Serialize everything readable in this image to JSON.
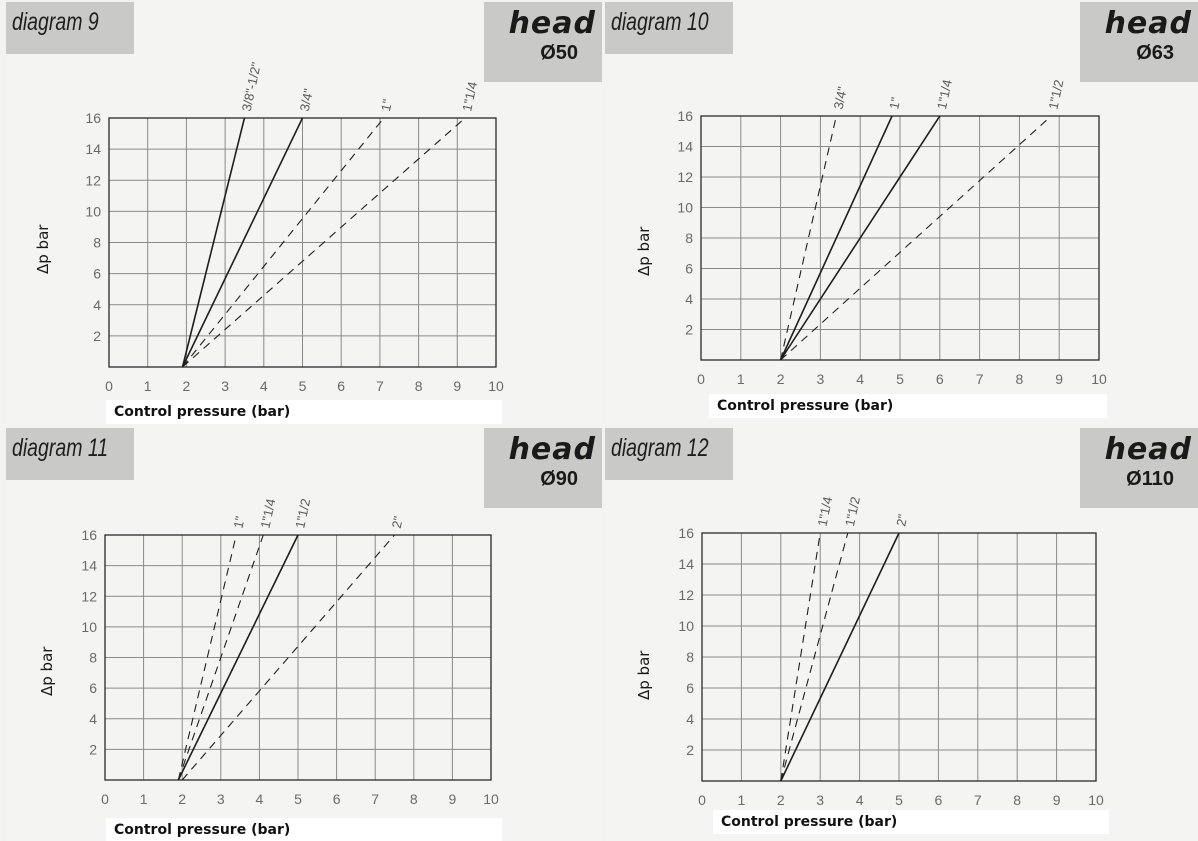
{
  "colors": {
    "panel_bg": "#f4f4f3",
    "tab_bg": "#c9c9c7",
    "grid": "#8a8a8a",
    "frame": "#2a2a2a",
    "line": "#1e1e1e"
  },
  "chart_data": [
    {
      "type": "line",
      "title": "diagram 9",
      "badge": {
        "word": "head",
        "diameter": "Ø50"
      },
      "xlabel": "Control pressure (bar)",
      "ylabel": "Δp bar",
      "xlim": [
        0,
        10
      ],
      "ylim": [
        0,
        16
      ],
      "xticks": [
        "0",
        "1",
        "2",
        "3",
        "4",
        "5",
        "6",
        "7",
        "8",
        "9",
        "10"
      ],
      "yticks": [
        "2",
        "4",
        "6",
        "8",
        "10",
        "12",
        "14",
        "16"
      ],
      "grid": true,
      "series": [
        {
          "name": "3/8\"-1/2\"",
          "style": "solid",
          "x": [
            1.9,
            3.5
          ],
          "y": [
            0,
            16
          ]
        },
        {
          "name": "3/4\"",
          "style": "solid",
          "x": [
            1.9,
            5.0
          ],
          "y": [
            0,
            16
          ]
        },
        {
          "name": "1\"",
          "style": "dashed",
          "x": [
            1.9,
            7.1
          ],
          "y": [
            0,
            16
          ]
        },
        {
          "name": "1\"1/4",
          "style": "dashed",
          "x": [
            1.9,
            9.2
          ],
          "y": [
            0,
            16
          ]
        }
      ]
    },
    {
      "type": "line",
      "title": "diagram 10",
      "badge": {
        "word": "head",
        "diameter": "Ø63"
      },
      "xlabel": "Control pressure (bar)",
      "ylabel": "Δp bar",
      "xlim": [
        0,
        10
      ],
      "ylim": [
        0,
        16
      ],
      "xticks": [
        "0",
        "1",
        "2",
        "3",
        "4",
        "5",
        "6",
        "7",
        "8",
        "9",
        "10"
      ],
      "yticks": [
        "2",
        "4",
        "6",
        "8",
        "10",
        "12",
        "14",
        "16"
      ],
      "grid": true,
      "series": [
        {
          "name": "3/4\"",
          "style": "dashed",
          "x": [
            2.0,
            3.4
          ],
          "y": [
            0,
            16
          ]
        },
        {
          "name": "1\"",
          "style": "solid",
          "x": [
            2.0,
            4.8
          ],
          "y": [
            0,
            16
          ]
        },
        {
          "name": "1\"1/4",
          "style": "solid",
          "x": [
            2.0,
            6.0
          ],
          "y": [
            0,
            16
          ]
        },
        {
          "name": "1\"1/2",
          "style": "dashed",
          "x": [
            2.0,
            8.8
          ],
          "y": [
            0,
            16
          ]
        }
      ]
    },
    {
      "type": "line",
      "title": "diagram 11",
      "badge": {
        "word": "head",
        "diameter": "Ø90"
      },
      "xlabel": "Control pressure (bar)",
      "ylabel": "Δp bar",
      "xlim": [
        0,
        10
      ],
      "ylim": [
        0,
        16
      ],
      "xticks": [
        "0",
        "1",
        "2",
        "3",
        "4",
        "5",
        "6",
        "7",
        "8",
        "9",
        "10"
      ],
      "yticks": [
        "2",
        "4",
        "6",
        "8",
        "10",
        "12",
        "14",
        "16"
      ],
      "grid": true,
      "series": [
        {
          "name": "1\"",
          "style": "dashed",
          "x": [
            1.9,
            3.4
          ],
          "y": [
            0,
            16
          ]
        },
        {
          "name": "1\"1/4",
          "style": "dashed",
          "x": [
            1.9,
            4.1
          ],
          "y": [
            0,
            16
          ]
        },
        {
          "name": "1\"1/2",
          "style": "solid",
          "x": [
            1.9,
            5.0
          ],
          "y": [
            0,
            16
          ]
        },
        {
          "name": "2\"",
          "style": "dashed",
          "x": [
            2.0,
            7.5
          ],
          "y": [
            0,
            16
          ]
        }
      ]
    },
    {
      "type": "line",
      "title": "diagram 12",
      "badge": {
        "word": "head",
        "diameter": "Ø110"
      },
      "xlabel": "Control pressure (bar)",
      "ylabel": "Δp bar",
      "xlim": [
        0,
        10
      ],
      "ylim": [
        0,
        16
      ],
      "xticks": [
        "0",
        "1",
        "2",
        "3",
        "4",
        "5",
        "6",
        "7",
        "8",
        "9",
        "10"
      ],
      "yticks": [
        "2",
        "4",
        "6",
        "8",
        "10",
        "12",
        "14",
        "16"
      ],
      "grid": true,
      "series": [
        {
          "name": "1\"1/4",
          "style": "dashed",
          "x": [
            2.0,
            3.0
          ],
          "y": [
            0,
            16
          ]
        },
        {
          "name": "1\"1/2",
          "style": "dashed",
          "x": [
            2.0,
            3.7
          ],
          "y": [
            0,
            16
          ]
        },
        {
          "name": "2\"",
          "style": "solid",
          "x": [
            2.0,
            5.0
          ],
          "y": [
            0,
            16
          ]
        }
      ]
    }
  ]
}
